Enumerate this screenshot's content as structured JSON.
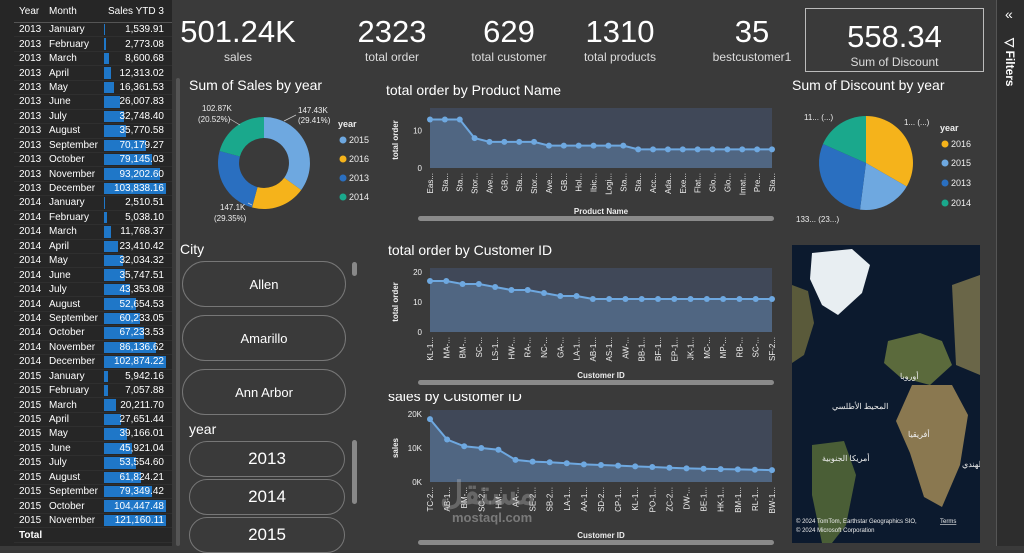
{
  "table": {
    "headers": [
      "Year",
      "Month",
      "Sales YTD 3"
    ],
    "rows": [
      [
        "2013",
        "January",
        "1,539.91",
        0.015
      ],
      [
        "2013",
        "February",
        "2,773.08",
        0.027
      ],
      [
        "2013",
        "March",
        "8,600.68",
        0.083
      ],
      [
        "2013",
        "April",
        "12,313.02",
        0.12
      ],
      [
        "2013",
        "May",
        "16,361.53",
        0.16
      ],
      [
        "2013",
        "June",
        "26,007.83",
        0.25
      ],
      [
        "2013",
        "July",
        "32,748.40",
        0.32
      ],
      [
        "2013",
        "August",
        "35,770.58",
        0.35
      ],
      [
        "2013",
        "September",
        "70,179.27",
        0.68
      ],
      [
        "2013",
        "October",
        "79,145.03",
        0.77
      ],
      [
        "2013",
        "November",
        "93,202.60",
        0.9
      ],
      [
        "2013",
        "December",
        "103,838.16",
        1.0
      ],
      [
        "2014",
        "January",
        "2,510.51",
        0.024
      ],
      [
        "2014",
        "February",
        "5,038.10",
        0.049
      ],
      [
        "2014",
        "March",
        "11,768.37",
        0.114
      ],
      [
        "2014",
        "April",
        "23,410.42",
        0.227
      ],
      [
        "2014",
        "May",
        "32,034.32",
        0.31
      ],
      [
        "2014",
        "June",
        "35,747.51",
        0.346
      ],
      [
        "2014",
        "July",
        "43,353.08",
        0.42
      ],
      [
        "2014",
        "August",
        "52,654.53",
        0.51
      ],
      [
        "2014",
        "September",
        "60,233.05",
        0.583
      ],
      [
        "2014",
        "October",
        "67,233.53",
        0.651
      ],
      [
        "2014",
        "November",
        "86,136.62",
        0.834
      ],
      [
        "2014",
        "December",
        "102,874.22",
        0.996
      ],
      [
        "2015",
        "January",
        "5,942.16",
        0.058
      ],
      [
        "2015",
        "February",
        "7,057.88",
        0.068
      ],
      [
        "2015",
        "March",
        "20,211.70",
        0.196
      ],
      [
        "2015",
        "April",
        "27,651.44",
        0.268
      ],
      [
        "2015",
        "May",
        "39,166.01",
        0.379
      ],
      [
        "2015",
        "June",
        "45,921.04",
        0.445
      ],
      [
        "2015",
        "July",
        "53,554.60",
        0.519
      ],
      [
        "2015",
        "August",
        "61,824.21",
        0.599
      ],
      [
        "2015",
        "September",
        "79,349.42",
        0.769
      ],
      [
        "2015",
        "October",
        "104,447.48",
        1.0
      ],
      [
        "2015",
        "November",
        "121,160.11",
        1.0
      ]
    ],
    "total_label": "Total"
  },
  "cards": [
    {
      "value": "501.24K",
      "label": "sales"
    },
    {
      "value": "2323",
      "label": "total order"
    },
    {
      "value": "629",
      "label": "total customer"
    },
    {
      "value": "1310",
      "label": "total products"
    },
    {
      "value": "35",
      "label": "bestcustomer1"
    },
    {
      "value": "558.34",
      "label": "Sum of Discount"
    }
  ],
  "donut": {
    "title": "Sum of Sales by year",
    "legend_title": "year",
    "legend": [
      {
        "label": "2015",
        "color": "#6ea8e0"
      },
      {
        "label": "2016",
        "color": "#f5b31b"
      },
      {
        "label": "2013",
        "color": "#2a6fc0"
      },
      {
        "label": "2014",
        "color": "#1aa88c"
      }
    ],
    "lbl_tr": "147.43K",
    "lbl_tr2": "(29.41%)",
    "lbl_tl": "102.87K",
    "lbl_tl2": "(20.52%)",
    "lbl_bl": "147.1K",
    "lbl_bl2": "(29.35%)"
  },
  "pie": {
    "title": "Sum of Discount by year",
    "legend_title": "year",
    "legend": [
      {
        "label": "2016",
        "color": "#f5b31b"
      },
      {
        "label": "2015",
        "color": "#6ea8e0"
      },
      {
        "label": "2013",
        "color": "#2a6fc0"
      },
      {
        "label": "2014",
        "color": "#1aa88c"
      }
    ],
    "lbl_tl": "11... (...)",
    "lbl_tr": "1... (...)",
    "lbl_bl": "133... (23...)"
  },
  "city": {
    "title": "City",
    "items": [
      "Allen",
      "Amarillo",
      "Ann Arbor"
    ]
  },
  "year_slicer": {
    "title": "year",
    "items": [
      "2013",
      "2014",
      "2015"
    ]
  },
  "map": {
    "attrib": "© 2024 TomTom, Earthstar Geographics SIO,",
    "terms": "Terms",
    "attrib2": "© 2024 Microsoft Corporation",
    "labels": [
      "أوروبا",
      "المحيط الأطلسي",
      "أفريقيا",
      "أمريكا الجنوبية",
      "المحي الهندي"
    ]
  },
  "watermark": {
    "arabic": "مستقل",
    "latin": "mostaql.com"
  },
  "filters": {
    "label": "Filters"
  },
  "chart_data": [
    {
      "type": "area",
      "title": "total order by Product Name",
      "xlabel": "Product Name",
      "ylabel": "total order",
      "ylim": [
        0,
        15
      ],
      "yticks": [
        "10",
        "0"
      ],
      "categories": [
        "Eas...",
        "Sta...",
        "Sta...",
        "Stor...",
        "Ave...",
        "GB...",
        "Sta...",
        "Stor...",
        "Ave...",
        "GB...",
        "Hol...",
        "Ibic...",
        "Logi...",
        "Sta...",
        "Sta...",
        "Acc...",
        "Ada...",
        "Exe...",
        "Flat...",
        "Glo...",
        "Glo...",
        "Imat...",
        "Pre...",
        "Sta..."
      ],
      "values": [
        13,
        13,
        13,
        8,
        7,
        7,
        7,
        7,
        6,
        6,
        6,
        6,
        6,
        6,
        5,
        5,
        5,
        5,
        5,
        5,
        5,
        5,
        5,
        5
      ]
    },
    {
      "type": "area",
      "title": "total order by Customer ID",
      "xlabel": "Customer ID",
      "ylabel": "total order",
      "ylim": [
        0,
        20
      ],
      "yticks": [
        "20",
        "10",
        "0"
      ],
      "categories": [
        "KL-1...",
        "MA-...",
        "BM-...",
        "SC-...",
        "LS-1...",
        "HW-...",
        "RA-...",
        "NC-...",
        "GA-...",
        "LA-1...",
        "AB-1...",
        "AS-1...",
        "AW-...",
        "BB-1...",
        "BF-1...",
        "EP-1...",
        "JK-1...",
        "MC-...",
        "MP-...",
        "RB-...",
        "SC-...",
        "SF-2..."
      ],
      "values": [
        17,
        17,
        16,
        16,
        15,
        14,
        14,
        13,
        12,
        12,
        11,
        11,
        11,
        11,
        11,
        11,
        11,
        11,
        11,
        11,
        11,
        11
      ]
    },
    {
      "type": "area",
      "title": "sales by Customer ID",
      "xlabel": "Customer ID",
      "ylabel": "sales",
      "ylim": [
        0,
        20000
      ],
      "yticks": [
        "20K",
        "10K",
        "0K"
      ],
      "categories": [
        "TC-2...",
        "AB-1...",
        "BM-...",
        "SC-2...",
        "HM-...",
        "AA-...",
        "SE-2...",
        "SB-2...",
        "LA-1...",
        "AA-1...",
        "SD-2...",
        "CP-1...",
        "KL-1...",
        "PO-1...",
        "ZC-2...",
        "DW-...",
        "BE-1...",
        "HK-1...",
        "BM-1...",
        "RL-1...",
        "BW-1..."
      ],
      "values": [
        18500,
        12500,
        10500,
        10000,
        9500,
        6500,
        6000,
        5800,
        5500,
        5200,
        5000,
        4800,
        4600,
        4400,
        4200,
        4000,
        3900,
        3800,
        3700,
        3600,
        3500
      ]
    }
  ]
}
